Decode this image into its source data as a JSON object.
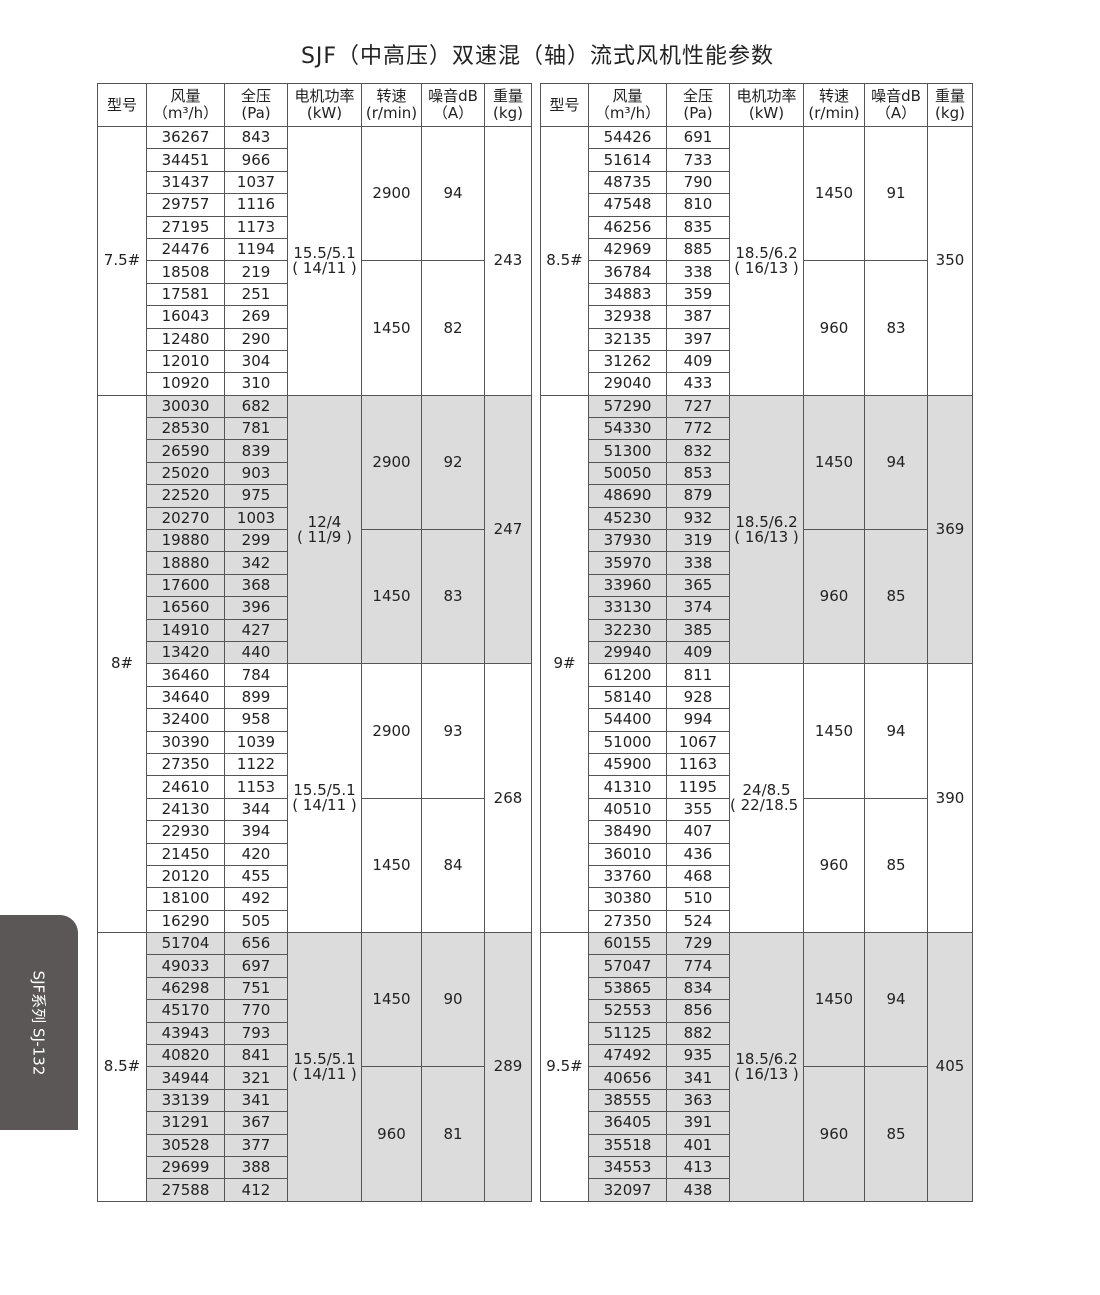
{
  "title": "SJF（中高压）双速混（轴）流式风机性能参数",
  "side_tab": "SJF系列  SJ-132",
  "headers": [
    "型号",
    "风量\n（m³/h）",
    "全压\n(Pa)",
    "电机功率\n(kW)",
    "转速\n(r/min)",
    "噪音dB\n（A）",
    "重量\n(kg)"
  ],
  "tables": [
    [
      {
        "model": "7.5#",
        "halves": [
          {
            "weight": "243",
            "power": "15.5/5.1\n( 14/11 )",
            "shade": false,
            "speeds": [
              {
                "speed": "2900",
                "noise": "94",
                "rows": [
                  [
                    "36267",
                    "843"
                  ],
                  [
                    "34451",
                    "966"
                  ],
                  [
                    "31437",
                    "1037"
                  ],
                  [
                    "29757",
                    "1116"
                  ],
                  [
                    "27195",
                    "1173"
                  ],
                  [
                    "24476",
                    "1194"
                  ]
                ]
              },
              {
                "speed": "1450",
                "noise": "82",
                "rows": [
                  [
                    "18508",
                    "219"
                  ],
                  [
                    "17581",
                    "251"
                  ],
                  [
                    "16043",
                    "269"
                  ],
                  [
                    "12480",
                    "290"
                  ],
                  [
                    "12010",
                    "304"
                  ],
                  [
                    "10920",
                    "310"
                  ]
                ]
              }
            ]
          }
        ]
      },
      {
        "model": "8#",
        "halves": [
          {
            "weight": "247",
            "power": "12/4\n( 11/9 )",
            "shade": true,
            "speeds": [
              {
                "speed": "2900",
                "noise": "92",
                "rows": [
                  [
                    "30030",
                    "682"
                  ],
                  [
                    "28530",
                    "781"
                  ],
                  [
                    "26590",
                    "839"
                  ],
                  [
                    "25020",
                    "903"
                  ],
                  [
                    "22520",
                    "975"
                  ],
                  [
                    "20270",
                    "1003"
                  ]
                ]
              },
              {
                "speed": "1450",
                "noise": "83",
                "rows": [
                  [
                    "19880",
                    "299"
                  ],
                  [
                    "18880",
                    "342"
                  ],
                  [
                    "17600",
                    "368"
                  ],
                  [
                    "16560",
                    "396"
                  ],
                  [
                    "14910",
                    "427"
                  ],
                  [
                    "13420",
                    "440"
                  ]
                ]
              }
            ]
          },
          {
            "weight": "268",
            "power": "15.5/5.1\n( 14/11 )",
            "shade": false,
            "speeds": [
              {
                "speed": "2900",
                "noise": "93",
                "rows": [
                  [
                    "36460",
                    "784"
                  ],
                  [
                    "34640",
                    "899"
                  ],
                  [
                    "32400",
                    "958"
                  ],
                  [
                    "30390",
                    "1039"
                  ],
                  [
                    "27350",
                    "1122"
                  ],
                  [
                    "24610",
                    "1153"
                  ]
                ]
              },
              {
                "speed": "1450",
                "noise": "84",
                "rows": [
                  [
                    "24130",
                    "344"
                  ],
                  [
                    "22930",
                    "394"
                  ],
                  [
                    "21450",
                    "420"
                  ],
                  [
                    "20120",
                    "455"
                  ],
                  [
                    "18100",
                    "492"
                  ],
                  [
                    "16290",
                    "505"
                  ]
                ]
              }
            ]
          }
        ]
      },
      {
        "model": "8.5#",
        "halves": [
          {
            "weight": "289",
            "power": "15.5/5.1\n( 14/11 )",
            "shade": true,
            "speeds": [
              {
                "speed": "1450",
                "noise": "90",
                "rows": [
                  [
                    "51704",
                    "656"
                  ],
                  [
                    "49033",
                    "697"
                  ],
                  [
                    "46298",
                    "751"
                  ],
                  [
                    "45170",
                    "770"
                  ],
                  [
                    "43943",
                    "793"
                  ],
                  [
                    "40820",
                    "841"
                  ]
                ]
              },
              {
                "speed": "960",
                "noise": "81",
                "rows": [
                  [
                    "34944",
                    "321"
                  ],
                  [
                    "33139",
                    "341"
                  ],
                  [
                    "31291",
                    "367"
                  ],
                  [
                    "30528",
                    "377"
                  ],
                  [
                    "29699",
                    "388"
                  ],
                  [
                    "27588",
                    "412"
                  ]
                ]
              }
            ]
          }
        ]
      }
    ],
    [
      {
        "model": "8.5#",
        "halves": [
          {
            "weight": "350",
            "power": "18.5/6.2\n( 16/13 )",
            "shade": false,
            "speeds": [
              {
                "speed": "1450",
                "noise": "91",
                "rows": [
                  [
                    "54426",
                    "691"
                  ],
                  [
                    "51614",
                    "733"
                  ],
                  [
                    "48735",
                    "790"
                  ],
                  [
                    "47548",
                    "810"
                  ],
                  [
                    "46256",
                    "835"
                  ],
                  [
                    "42969",
                    "885"
                  ]
                ]
              },
              {
                "speed": "960",
                "noise": "83",
                "rows": [
                  [
                    "36784",
                    "338"
                  ],
                  [
                    "34883",
                    "359"
                  ],
                  [
                    "32938",
                    "387"
                  ],
                  [
                    "32135",
                    "397"
                  ],
                  [
                    "31262",
                    "409"
                  ],
                  [
                    "29040",
                    "433"
                  ]
                ]
              }
            ]
          }
        ]
      },
      {
        "model": "9#",
        "halves": [
          {
            "weight": "369",
            "power": "18.5/6.2\n( 16/13 )",
            "shade": true,
            "speeds": [
              {
                "speed": "1450",
                "noise": "94",
                "rows": [
                  [
                    "57290",
                    "727"
                  ],
                  [
                    "54330",
                    "772"
                  ],
                  [
                    "51300",
                    "832"
                  ],
                  [
                    "50050",
                    "853"
                  ],
                  [
                    "48690",
                    "879"
                  ],
                  [
                    "45230",
                    "932"
                  ]
                ]
              },
              {
                "speed": "960",
                "noise": "85",
                "rows": [
                  [
                    "37930",
                    "319"
                  ],
                  [
                    "35970",
                    "338"
                  ],
                  [
                    "33960",
                    "365"
                  ],
                  [
                    "33130",
                    "374"
                  ],
                  [
                    "32230",
                    "385"
                  ],
                  [
                    "29940",
                    "409"
                  ]
                ]
              }
            ]
          },
          {
            "weight": "390",
            "power": "24/8.5\n( 22/18.5 )",
            "shade": false,
            "speeds": [
              {
                "speed": "1450",
                "noise": "94",
                "rows": [
                  [
                    "61200",
                    "811"
                  ],
                  [
                    "58140",
                    "928"
                  ],
                  [
                    "54400",
                    "994"
                  ],
                  [
                    "51000",
                    "1067"
                  ],
                  [
                    "45900",
                    "1163"
                  ],
                  [
                    "41310",
                    "1195"
                  ]
                ]
              },
              {
                "speed": "960",
                "noise": "85",
                "rows": [
                  [
                    "40510",
                    "355"
                  ],
                  [
                    "38490",
                    "407"
                  ],
                  [
                    "36010",
                    "436"
                  ],
                  [
                    "33760",
                    "468"
                  ],
                  [
                    "30380",
                    "510"
                  ],
                  [
                    "27350",
                    "524"
                  ]
                ]
              }
            ]
          }
        ]
      },
      {
        "model": "9.5#",
        "halves": [
          {
            "weight": "405",
            "power": "18.5/6.2\n( 16/13 )",
            "shade": true,
            "speeds": [
              {
                "speed": "1450",
                "noise": "94",
                "rows": [
                  [
                    "60155",
                    "729"
                  ],
                  [
                    "57047",
                    "774"
                  ],
                  [
                    "53865",
                    "834"
                  ],
                  [
                    "52553",
                    "856"
                  ],
                  [
                    "51125",
                    "882"
                  ],
                  [
                    "47492",
                    "935"
                  ]
                ]
              },
              {
                "speed": "960",
                "noise": "85",
                "rows": [
                  [
                    "40656",
                    "341"
                  ],
                  [
                    "38555",
                    "363"
                  ],
                  [
                    "36405",
                    "391"
                  ],
                  [
                    "35518",
                    "401"
                  ],
                  [
                    "34553",
                    "413"
                  ],
                  [
                    "32097",
                    "438"
                  ]
                ]
              }
            ]
          }
        ]
      }
    ]
  ]
}
